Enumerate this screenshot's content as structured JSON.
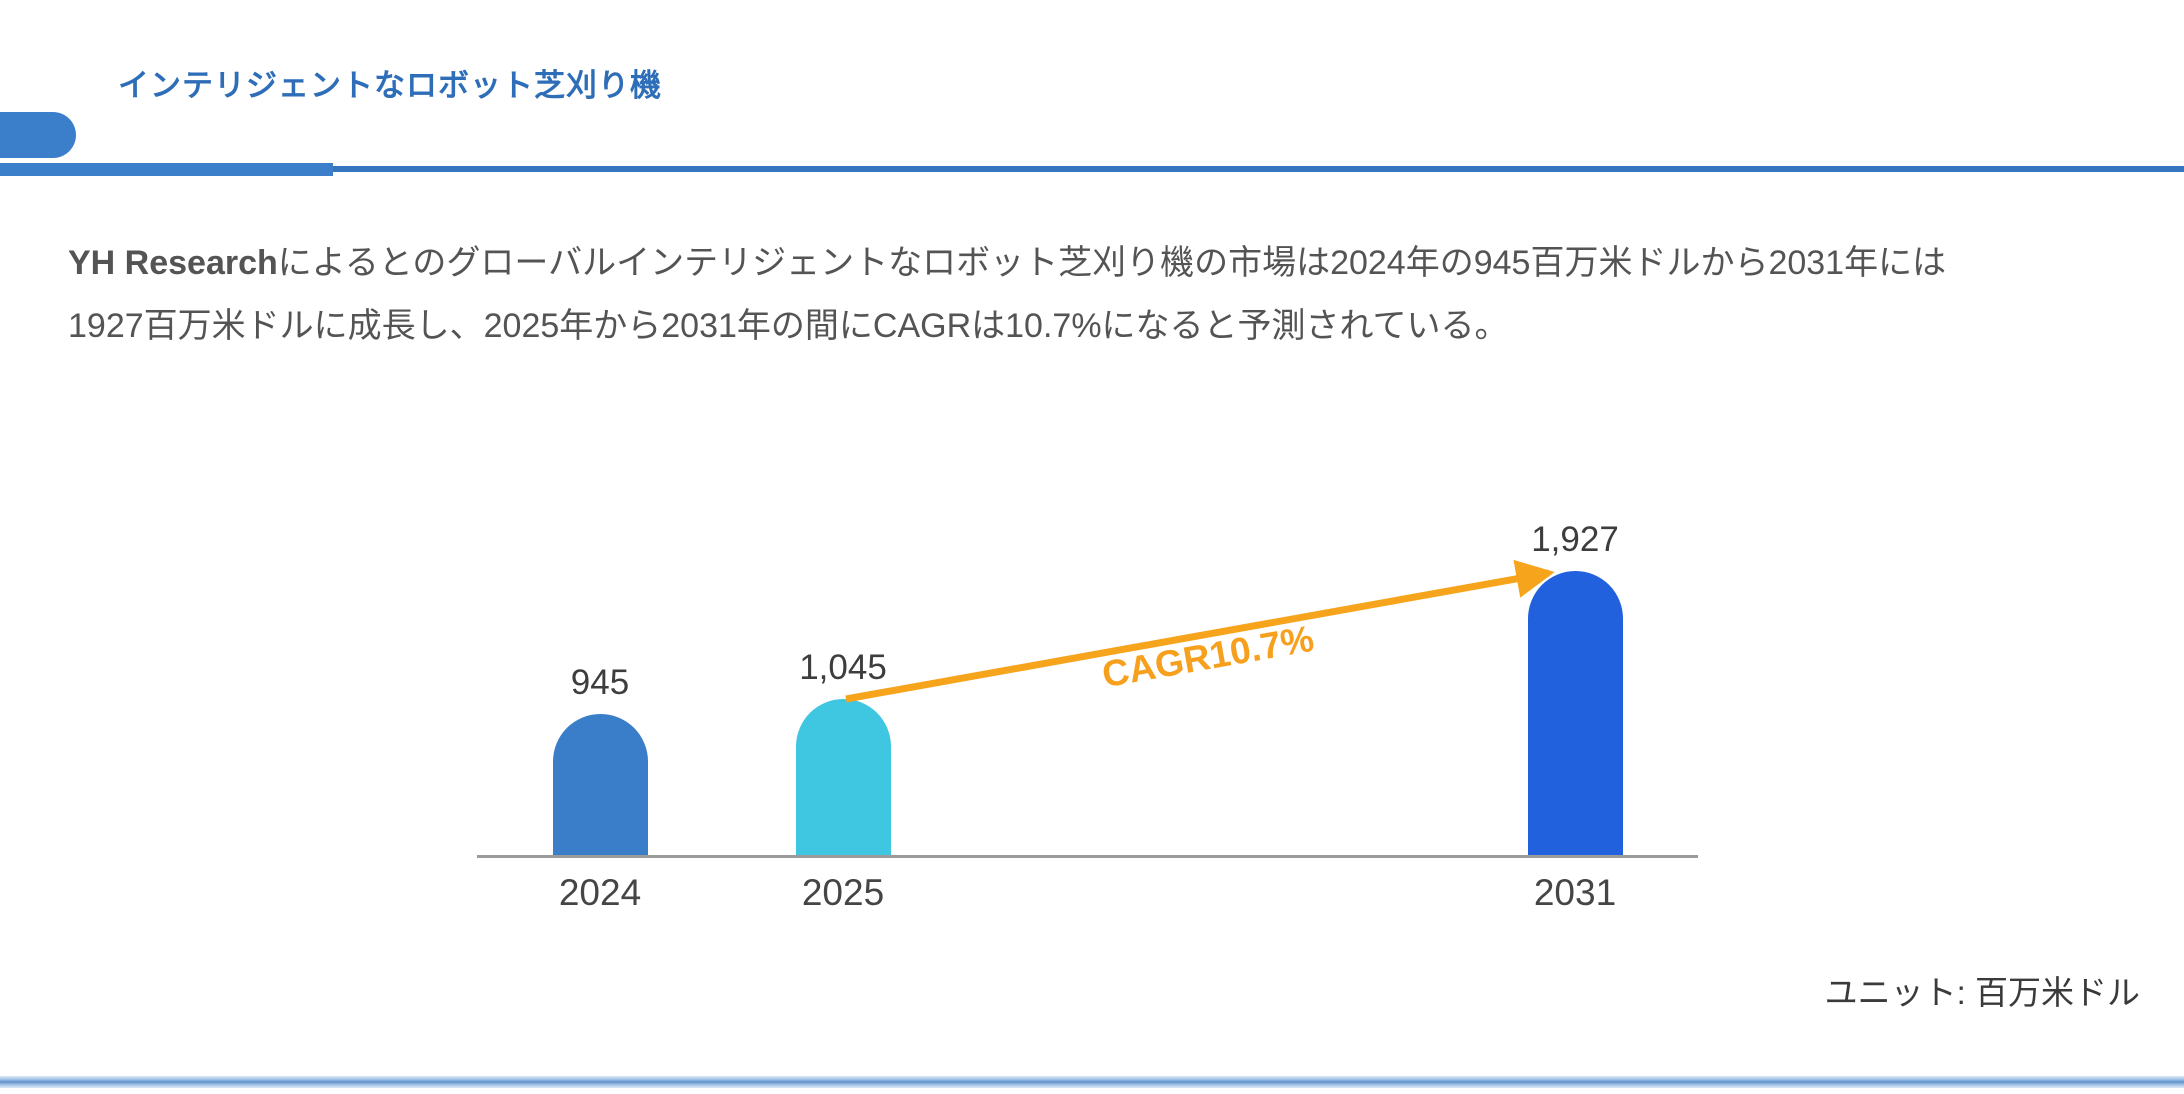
{
  "header": {
    "title": "インテリジェントなロボット芝刈り機"
  },
  "summary": {
    "runs": [
      {
        "text": "YH Research",
        "bold": true
      },
      {
        "text": "によるとのグローバルインテリジェントなロボット芝刈り機の市場は2024年の945百万米ドルから2031年には\n1927百万米ドルに成長し、2025年から2031年の間にCAGRは10.7%になると予測されている。",
        "bold": false
      }
    ]
  },
  "chart_data": {
    "type": "bar",
    "title": "",
    "xlabel": "",
    "ylabel": "",
    "categories": [
      "2024",
      "2025",
      "2031"
    ],
    "values": [
      945,
      1045,
      1927
    ],
    "value_labels": [
      "945",
      "1,045",
      "1,927"
    ],
    "bar_colors": [
      "#3A7DC8",
      "#3FC6E0",
      "#2161DE"
    ],
    "ylim": [
      0,
      1927
    ],
    "grid": "off",
    "legend": "none",
    "annotation": {
      "label": "CAGR10.7%",
      "color": "#F7A01E"
    },
    "unit_label": "ユニット: 百万米ドル"
  },
  "colors": {
    "title_blue": "#2E6DB7",
    "accent_blue": "#3B7EC9",
    "arrow_orange": "#F7A41D",
    "axis_gray": "#9B9B9B",
    "body_text_gray": "#545454"
  }
}
